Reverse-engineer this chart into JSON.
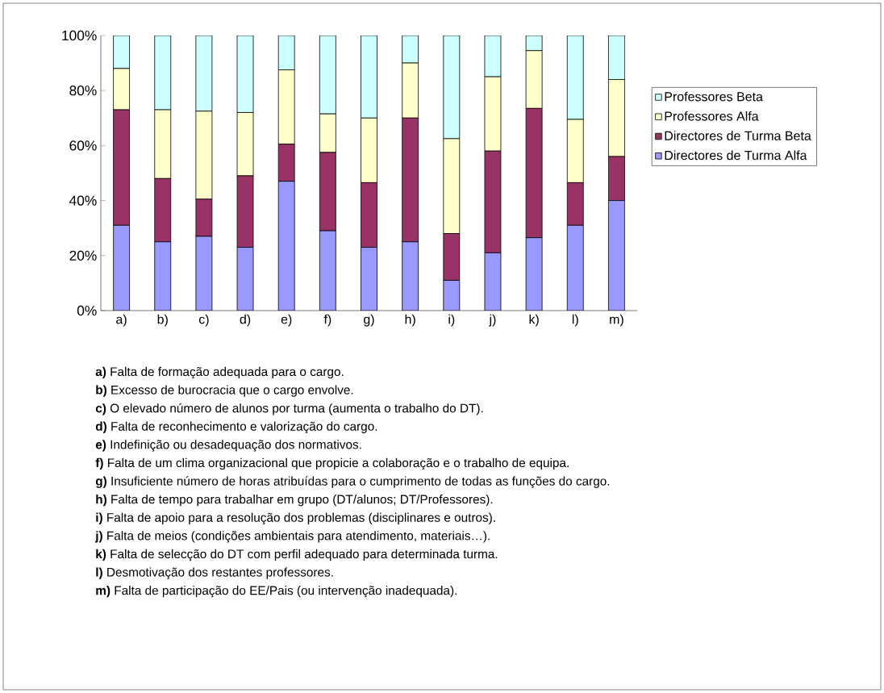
{
  "chart_data": {
    "type": "bar",
    "stacked": true,
    "legend": "right",
    "categories": [
      "a)",
      "b)",
      "c)",
      "d)",
      "e)",
      "f)",
      "g)",
      "h)",
      "i)",
      "j)",
      "k)",
      "l)",
      "m)"
    ],
    "ylim": [
      0,
      100
    ],
    "yticks": [
      {
        "value": 0,
        "label": "0%"
      },
      {
        "value": 20,
        "label": "20%"
      },
      {
        "value": 40,
        "label": "40%"
      },
      {
        "value": 60,
        "label": "60%"
      },
      {
        "value": 80,
        "label": "80%"
      },
      {
        "value": 100,
        "label": "100%"
      }
    ],
    "series": [
      {
        "name": "Directores de Turma Alfa",
        "color": "#9999ff",
        "values": [
          31,
          25,
          27,
          23,
          47,
          29,
          23,
          25,
          11,
          21,
          26.5,
          31,
          40
        ]
      },
      {
        "name": "Directores de Turma Beta",
        "color": "#993366",
        "values": [
          42,
          23,
          13.5,
          26,
          13.5,
          28.5,
          23.5,
          45,
          17,
          37,
          47,
          15.5,
          16
        ]
      },
      {
        "name": "Professores Alfa",
        "color": "#ffffcc",
        "values": [
          15,
          25,
          32,
          23,
          27,
          14,
          23.5,
          20,
          34.5,
          27,
          21,
          23,
          28
        ]
      },
      {
        "name": "Professores Beta",
        "color": "#ccffff",
        "values": [
          12,
          27,
          27.5,
          28,
          12.5,
          28.5,
          30,
          10,
          37.5,
          15,
          5.5,
          30.5,
          16
        ]
      }
    ],
    "annotations": [
      "**a)** Falta de formação adequada para o cargo.",
      "**b)** Excesso de burocracia que o cargo envolve.",
      "**c)** O elevado número de alunos por turma (aumenta o trabalho do DT).",
      "**d)** Falta de reconhecimento e valorização do cargo.",
      "**e)** Indefinição ou desadequação dos normativos.",
      "**f)** Falta de um clima organizacional que propicie a colaboração e o trabalho de equipa.",
      "**g)** Insuficiente número de horas atribuídas para o cumprimento de todas as funções do cargo.",
      "**h)** Falta de tempo para trabalhar em grupo (DT/alunos; DT/Professores).",
      "**i)** Falta de apoio para a resolução dos problemas (disciplinares e outros).",
      "**j)** Falta de meios (condições ambientais para atendimento, materiais…).",
      "**k)** Falta de selecção do DT com perfil adequado para determinada turma.",
      "**l)** Desmotivação dos restantes professores.",
      "**m)** Falta de participação do EE/Pais (ou intervenção inadequada)."
    ]
  }
}
